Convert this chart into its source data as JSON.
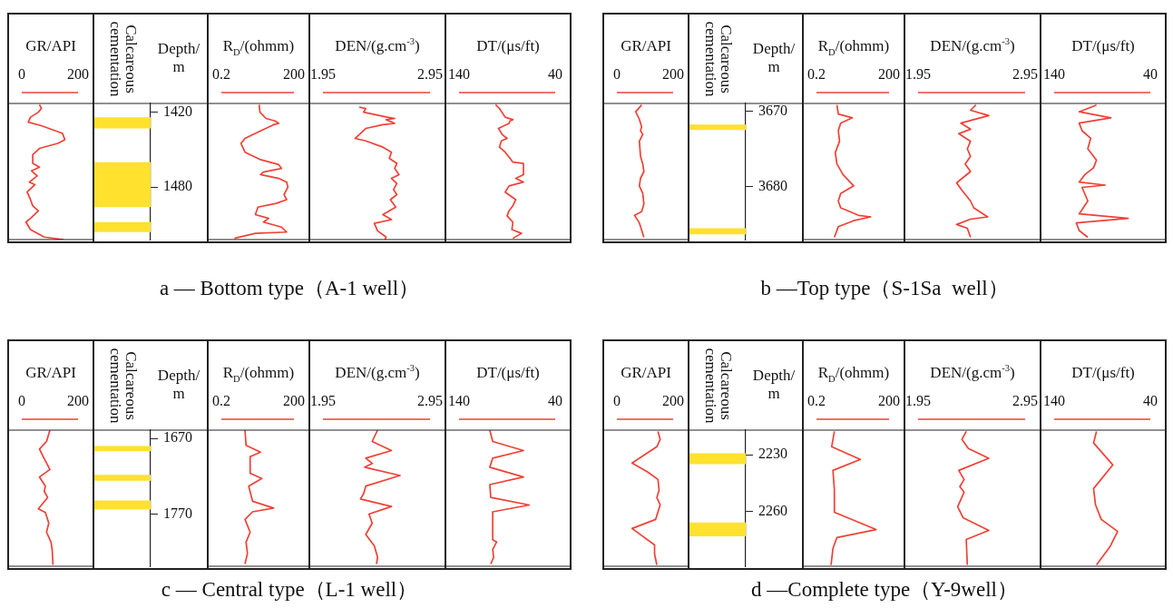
{
  "chart_data": [
    {
      "type": "line",
      "title": "GR/API",
      "xlim": [
        0,
        200
      ],
      "xticks": [
        0,
        200
      ],
      "ylim": [
        1522,
        1413
      ],
      "tick_labels": "x",
      "annotations": [
        "a — Bottom type（A-1 well）"
      ],
      "series": [
        {
          "color": "#ef4136",
          "x": [
            63,
            70,
            59,
            31,
            23,
            72,
            145,
            153,
            128,
            63,
            39,
            39,
            63,
            35,
            55,
            27,
            47,
            19,
            31,
            39,
            59,
            31,
            15,
            31,
            80,
            149
          ],
          "values": [
            1414,
            1417,
            1420,
            1424,
            1428,
            1431,
            1437,
            1442,
            1445,
            1449,
            1454,
            1461,
            1464,
            1467,
            1471,
            1476,
            1478,
            1484,
            1490,
            1495,
            1499,
            1505,
            1508,
            1514,
            1520,
            1522
          ]
        }
      ]
    },
    {
      "type": "line",
      "title": "Calcareous cementation",
      "categories": [
        null
      ],
      "ylabel": "Depth/m",
      "ylim": [
        1522,
        1413
      ],
      "yticks": [
        1420,
        1480
      ],
      "tick_labels": "y",
      "bands": [
        {
          "axis": "y",
          "from": 1424,
          "to": 1433,
          "color": "#ffe12e"
        },
        {
          "axis": "y",
          "from": 1460,
          "to": 1496,
          "color": "#ffe12e"
        },
        {
          "axis": "y",
          "from": 1508,
          "to": 1516,
          "color": "#ffe12e"
        }
      ]
    },
    {
      "type": "line",
      "title": "R$_{D}$/(ohmm)",
      "log": "x",
      "xlim": [
        0.2,
        200
      ],
      "xticks": [
        0.2,
        200
      ],
      "ylim": [
        1522,
        1413
      ],
      "tick_labels": "x",
      "series": [
        {
          "color": "#ef4136",
          "x": [
            7.3,
            7.9,
            14,
            33,
            47,
            29,
            8.3,
            1.9,
            1.3,
            1.9,
            8.3,
            47,
            61,
            11,
            8.3,
            47,
            100,
            113,
            78,
            100,
            37,
            6.5,
            5.1,
            18,
            11,
            61,
            100,
            5.1,
            0.69
          ],
          "values": [
            1414,
            1420,
            1425,
            1427,
            1429,
            1430,
            1435,
            1441,
            1445,
            1452,
            1458,
            1462,
            1465,
            1468,
            1470,
            1473,
            1476,
            1480,
            1486,
            1490,
            1493,
            1496,
            1502,
            1505,
            1508,
            1512,
            1516,
            1517,
            1521
          ]
        }
      ]
    },
    {
      "type": "line",
      "title": "DEN/(g.cm$^{-3}$)",
      "xlim": [
        1.95,
        2.95
      ],
      "xticks": [
        1.95,
        2.95
      ],
      "ylim": [
        1522,
        1413
      ],
      "tick_labels": "x",
      "series": [
        {
          "color": "#ef4136",
          "x": [
            2.29,
            2.35,
            2.33,
            2.55,
            2.62,
            2.54,
            2.62,
            2.51,
            2.35,
            2.25,
            2.35,
            2.51,
            2.59,
            2.57,
            2.64,
            2.62,
            2.66,
            2.59,
            2.64,
            2.61,
            2.64,
            2.58,
            2.63,
            2.51,
            2.59,
            2.43,
            2.46,
            2.54,
            2.53
          ],
          "values": [
            1416,
            1417,
            1420,
            1424,
            1425,
            1426,
            1429,
            1430,
            1433,
            1441,
            1443,
            1448,
            1452,
            1457,
            1461,
            1465,
            1470,
            1473,
            1477,
            1482,
            1486,
            1490,
            1496,
            1502,
            1506,
            1509,
            1515,
            1520,
            1522
          ]
        }
      ]
    },
    {
      "type": "line",
      "title": "DT/(μs/ft)",
      "xlim": [
        140,
        40
      ],
      "xticks": [
        140,
        40
      ],
      "ylim": [
        1522,
        1413
      ],
      "tick_labels": "x",
      "series": [
        {
          "color": "#ef4136",
          "x": [
            102,
            98,
            92,
            84,
            87,
            88,
            99,
            95,
            90,
            96,
            98,
            92,
            87,
            84,
            73,
            73,
            81,
            73,
            88,
            92,
            81,
            84,
            88,
            90,
            84,
            85,
            75,
            84
          ],
          "values": [
            1414,
            1417,
            1424,
            1426,
            1427,
            1429,
            1433,
            1438,
            1441,
            1443,
            1448,
            1452,
            1457,
            1460,
            1461,
            1470,
            1473,
            1476,
            1479,
            1484,
            1490,
            1495,
            1499,
            1503,
            1508,
            1514,
            1517,
            1521
          ]
        }
      ]
    },
    {
      "type": "line",
      "title": "GR/API",
      "xlim": [
        0,
        200
      ],
      "xticks": [
        0,
        200
      ],
      "ylim": [
        3687,
        3669
      ],
      "tick_labels": "x",
      "annotations": [
        "b —Top type（S-1Sa  well）"
      ],
      "series": [
        {
          "color": "#ef4136",
          "x": [
            88,
            67,
            80,
            88,
            84,
            92,
            80,
            84,
            92,
            96,
            84,
            80,
            92,
            96,
            88,
            63,
            80,
            96
          ],
          "values": [
            3669.2,
            3670.1,
            3671.1,
            3672.1,
            3672.6,
            3673.1,
            3674,
            3676,
            3677,
            3678,
            3678.9,
            3679.9,
            3680.9,
            3682.3,
            3683.3,
            3683.8,
            3684.8,
            3686.7
          ]
        }
      ]
    },
    {
      "type": "line",
      "title": "Calcareous cementation",
      "categories": [
        null
      ],
      "ylabel": "Depth/m",
      "ylim": [
        3687,
        3669
      ],
      "yticks": [
        3670,
        3680
      ],
      "tick_labels": "y",
      "bands": [
        {
          "axis": "y",
          "from": 3671.8,
          "to": 3672.5,
          "color": "#ffe12e"
        },
        {
          "axis": "y",
          "from": 3685.5,
          "to": 3686.3,
          "color": "#ffe12e"
        }
      ]
    },
    {
      "type": "line",
      "title": "R$_{D}$/(ohmm)",
      "log": "x",
      "xlim": [
        0.2,
        200
      ],
      "xticks": [
        0.2,
        200
      ],
      "ylim": [
        3687,
        3669
      ],
      "tick_labels": "x",
      "series": [
        {
          "color": "#ef4136",
          "x": [
            1.4,
            1.6,
            6.1,
            2,
            1.6,
            1.8,
            1.2,
            1.4,
            2.5,
            6.9,
            2,
            1.6,
            2,
            11,
            35,
            6.9,
            1.6,
            1.1
          ],
          "values": [
            3669.2,
            3670.4,
            3670.9,
            3671.6,
            3672.6,
            3674,
            3675.5,
            3677,
            3678.4,
            3679.9,
            3680.9,
            3681.9,
            3682.8,
            3683.8,
            3684,
            3684.5,
            3685.3,
            3686.7
          ]
        }
      ]
    },
    {
      "type": "line",
      "title": "DEN/(g.cm$^{-3}$)",
      "xlim": [
        1.95,
        2.95
      ],
      "xticks": [
        1.95,
        2.95
      ],
      "ylim": [
        3687,
        3669
      ],
      "tick_labels": "x",
      "series": [
        {
          "color": "#ef4136",
          "x": [
            2.49,
            2.44,
            2.61,
            2.35,
            2.44,
            2.33,
            2.44,
            2.41,
            2.44,
            2.39,
            2.44,
            2.31,
            2.36,
            2.44,
            2.47,
            2.6,
            2.44,
            2.31,
            2.41,
            2.44
          ],
          "values": [
            3669.2,
            3669.9,
            3670.6,
            3671.6,
            3672.4,
            3673,
            3674,
            3675,
            3676,
            3677,
            3678,
            3679.5,
            3680.5,
            3681.9,
            3682.8,
            3684,
            3684.3,
            3685,
            3685.5,
            3686.7
          ]
        }
      ]
    },
    {
      "type": "line",
      "title": "DT/(μs/ft)",
      "xlim": [
        140,
        40
      ],
      "xticks": [
        140,
        40
      ],
      "ylim": [
        3687,
        3669
      ],
      "tick_labels": "x",
      "series": [
        {
          "color": "#ef4136",
          "x": [
            96,
            114,
            81,
            114,
            111,
            102,
            105,
            96,
            99,
            108,
            114,
            87,
            111,
            105,
            114,
            63,
            117,
            114,
            105
          ],
          "values": [
            3669.2,
            3670.1,
            3670.9,
            3671.6,
            3672.6,
            3673.6,
            3675,
            3676.5,
            3677.5,
            3678.4,
            3679.4,
            3679.8,
            3680.1,
            3681.9,
            3683.6,
            3684.2,
            3684.8,
            3685.8,
            3686.7
          ]
        }
      ]
    },
    {
      "type": "line",
      "title": "GR/API",
      "xlim": [
        0,
        200
      ],
      "xticks": [
        0,
        200
      ],
      "ylim": [
        1839,
        1659
      ],
      "tick_labels": "x",
      "annotations": [
        "c — Central type（L-1 well）"
      ],
      "series": [
        {
          "color": "#ef4136",
          "x": [
            100,
            88,
            63,
            76,
            100,
            63,
            84,
            80,
            92,
            59,
            84,
            96,
            88,
            104,
            108,
            111
          ],
          "values": [
            1659,
            1674,
            1684,
            1694,
            1711,
            1721,
            1733,
            1740,
            1748,
            1763,
            1768,
            1782,
            1794,
            1807,
            1817,
            1837
          ]
        }
      ]
    },
    {
      "type": "line",
      "title": "Calcareous cementation",
      "categories": [
        null
      ],
      "ylabel": "Depth/m",
      "ylim": [
        1839,
        1659
      ],
      "yticks": [
        1670,
        1770
      ],
      "tick_labels": "y",
      "bands": [
        {
          "axis": "y",
          "from": 1680,
          "to": 1687,
          "color": "#ffe12e"
        },
        {
          "axis": "y",
          "from": 1718,
          "to": 1726,
          "color": "#ffe12e"
        },
        {
          "axis": "y",
          "from": 1752,
          "to": 1764,
          "color": "#ffe12e"
        }
      ]
    },
    {
      "type": "line",
      "title": "R$_{D}$/(ohmm)",
      "log": "x",
      "xlim": [
        0.2,
        200
      ],
      "xticks": [
        0.2,
        200
      ],
      "ylim": [
        1839,
        1659
      ],
      "tick_labels": "x",
      "series": [
        {
          "color": "#ef4136",
          "x": [
            1.9,
            2.1,
            8.3,
            3.1,
            3.1,
            9.4,
            2.7,
            3.9,
            29,
            3.9,
            1.9,
            3.1,
            2.1,
            2.4,
            1.9
          ],
          "values": [
            1659,
            1679,
            1688,
            1694,
            1716,
            1723,
            1733,
            1753,
            1762,
            1767,
            1777,
            1794,
            1807,
            1822,
            1836
          ]
        }
      ]
    },
    {
      "type": "line",
      "title": "DEN/(g.cm$^{-3}$)",
      "xlim": [
        1.95,
        2.95
      ],
      "xticks": [
        1.95,
        2.95
      ],
      "ylim": [
        1839,
        1659
      ],
      "tick_labels": "x",
      "series": [
        {
          "color": "#ef4136",
          "x": [
            2.46,
            2.41,
            2.59,
            2.35,
            2.41,
            2.34,
            2.67,
            2.35,
            2.33,
            2.3,
            2.59,
            2.38,
            2.41,
            2.35,
            2.43,
            2.46,
            2.45
          ],
          "values": [
            1659,
            1674,
            1686,
            1696,
            1703,
            1708,
            1719,
            1733,
            1743,
            1750,
            1760,
            1770,
            1782,
            1797,
            1812,
            1827,
            1836
          ]
        }
      ]
    },
    {
      "type": "line",
      "title": "DT/(μs/ft)",
      "xlim": [
        140,
        40
      ],
      "xticks": [
        140,
        40
      ],
      "ylim": [
        1839,
        1659
      ],
      "tick_labels": "x",
      "series": [
        {
          "color": "#ef4136",
          "x": [
            108,
            105,
            73,
            105,
            108,
            73,
            108,
            107,
            67,
            105,
            105,
            101,
            105,
            104,
            107
          ],
          "values": [
            1659,
            1674,
            1686,
            1696,
            1708,
            1721,
            1731,
            1748,
            1758,
            1767,
            1804,
            1807,
            1817,
            1827,
            1836
          ]
        }
      ]
    },
    {
      "type": "line",
      "title": "GR/API",
      "xlim": [
        0,
        200
      ],
      "xticks": [
        0,
        200
      ],
      "ylim": [
        2289,
        2217
      ],
      "tick_labels": "x",
      "annotations": [
        "d —Complete type（Y-9well）"
      ],
      "series": [
        {
          "color": "#ef4136",
          "x": [
            146,
            154,
            142,
            54,
            110,
            146,
            150,
            142,
            154,
            138,
            54,
            134,
            134,
            142
          ],
          "values": [
            2217.7,
            2221.9,
            2225.8,
            2234.4,
            2239.2,
            2243.1,
            2248.8,
            2252.7,
            2256.5,
            2264.2,
            2269,
            2277.7,
            2282.5,
            2288.3
          ]
        }
      ]
    },
    {
      "type": "line",
      "title": "Calcareous cementation",
      "categories": [
        null
      ],
      "ylabel": "Depth/m",
      "ylim": [
        2289,
        2217
      ],
      "yticks": [
        2230,
        2260
      ],
      "tick_labels": "y",
      "bands": [
        {
          "axis": "y",
          "from": 2229.2,
          "to": 2235,
          "color": "#ffe12e"
        },
        {
          "axis": "y",
          "from": 2265.8,
          "to": 2273.1,
          "color": "#ffe12e"
        }
      ]
    },
    {
      "type": "line",
      "title": "R$_{D}$/(ohmm)",
      "log": "x",
      "xlim": [
        0.2,
        200
      ],
      "xticks": [
        0.2,
        200
      ],
      "ylim": [
        2289,
        2217
      ],
      "tick_labels": "x",
      "series": [
        {
          "color": "#ef4136",
          "x": [
            1.1,
            0.85,
            13,
            0.96,
            1.1,
            1.1,
            58,
            1.4,
            0.96,
            0.8
          ],
          "values": [
            2217.7,
            2225.8,
            2232.5,
            2238.3,
            2248.8,
            2260.4,
            2269.6,
            2273.8,
            2279.6,
            2288.3
          ]
        }
      ]
    },
    {
      "type": "line",
      "title": "DEN/(g.cm$^{-3}$)",
      "xlim": [
        1.95,
        2.95
      ],
      "xticks": [
        1.95,
        2.95
      ],
      "ylim": [
        2289,
        2217
      ],
      "tick_labels": "x",
      "series": [
        {
          "color": "#ef4136",
          "x": [
            2.4,
            2.36,
            2.42,
            2.61,
            2.33,
            2.38,
            2.34,
            2.38,
            2.32,
            2.37,
            2.61,
            2.4,
            2.41
          ],
          "values": [
            2217.7,
            2221.9,
            2226.7,
            2231.9,
            2238.3,
            2243.1,
            2246.9,
            2249.8,
            2257.5,
            2263.3,
            2270,
            2274.8,
            2288.3
          ]
        }
      ]
    },
    {
      "type": "line",
      "title": "DT/(μs/ft)",
      "xlim": [
        140,
        40
      ],
      "xticks": [
        140,
        40
      ],
      "ylim": [
        2289,
        2217
      ],
      "tick_labels": "x",
      "series": [
        {
          "color": "#ef4136",
          "x": [
            96,
            99,
            79,
            99,
            97,
            91,
            74,
            82,
            96
          ],
          "values": [
            2217.7,
            2223.8,
            2235.4,
            2247.9,
            2256.5,
            2264.2,
            2270.6,
            2278.7,
            2288.3
          ]
        }
      ]
    }
  ]
}
